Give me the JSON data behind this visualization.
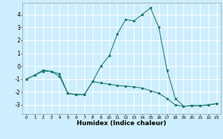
{
  "title": "",
  "xlabel": "Humidex (Indice chaleur)",
  "ylabel": "",
  "bg_color": "#cceeff",
  "grid_color": "#ffffff",
  "line_color": "#1a7a6e",
  "xlim": [
    -0.5,
    23.5
  ],
  "ylim": [
    -3.7,
    4.9
  ],
  "yticks": [
    -3,
    -2,
    -1,
    0,
    1,
    2,
    3,
    4
  ],
  "xticks": [
    0,
    1,
    2,
    3,
    4,
    5,
    6,
    7,
    8,
    9,
    10,
    11,
    12,
    13,
    14,
    15,
    16,
    17,
    18,
    19,
    20,
    21,
    22,
    23
  ],
  "curve1_x": [
    0,
    1,
    2,
    3,
    4,
    5,
    6,
    7,
    8,
    9,
    10,
    11,
    12,
    13,
    14,
    15,
    16,
    17,
    18,
    19,
    20,
    21,
    22,
    23
  ],
  "curve1_y": [
    -1.0,
    -0.7,
    -0.4,
    -0.4,
    -0.6,
    -2.1,
    -2.2,
    -2.2,
    -1.2,
    -1.3,
    -1.4,
    -1.5,
    -1.55,
    -1.6,
    -1.7,
    -1.9,
    -2.1,
    -2.5,
    -3.0,
    -3.1,
    -3.05,
    -3.05,
    -3.0,
    -2.9
  ],
  "curve2_x": [
    0,
    1,
    2,
    3,
    4,
    5,
    6,
    7,
    8,
    9,
    10,
    11,
    12,
    13,
    14,
    15,
    16,
    17,
    18,
    19,
    20,
    21,
    22,
    23
  ],
  "curve2_y": [
    -1.0,
    -0.7,
    -0.3,
    -0.4,
    -0.8,
    -2.1,
    -2.2,
    -2.2,
    -1.2,
    0.0,
    0.8,
    2.5,
    3.6,
    3.5,
    4.0,
    4.5,
    3.0,
    -0.3,
    -2.5,
    -3.1,
    -3.05,
    -3.05,
    -3.0,
    -2.9
  ]
}
